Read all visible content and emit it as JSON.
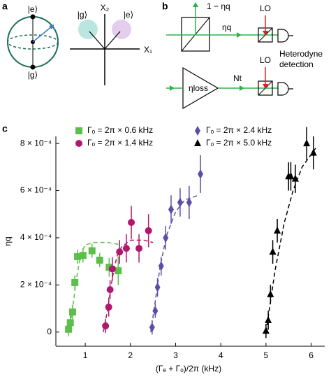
{
  "panels": {
    "a": {
      "label": "a",
      "sphere_top": "|e⟩",
      "sphere_bottom": "|g⟩",
      "x2": "X₂",
      "x1": "X₁",
      "state_g": "|g⟩",
      "state_e": "|e⟩"
    },
    "b": {
      "label": "b",
      "reflected": "1 − ηq",
      "transmitted": "ηq",
      "lo_top": "LO",
      "detection": [
        "Heterodyne",
        "detection"
      ],
      "loss": "ηloss",
      "noise": "Nt",
      "lo_bottom": "LO"
    },
    "c": {
      "label": "c"
    }
  },
  "chart_data": {
    "type": "scatter",
    "xlabel": "(Γₑ + Γₒ)/2π (kHz)",
    "ylabel": "ηq",
    "xlim": [
      0.35,
      6.3
    ],
    "xticks": [
      1,
      2,
      3,
      4,
      5,
      6
    ],
    "ylim": [
      -6e-05,
      0.00083
    ],
    "yticks": [
      {
        "value": 0,
        "label": "0"
      },
      {
        "value": 0.0002,
        "label": "2 × 10⁻⁴"
      },
      {
        "value": 0.0004,
        "label": "4 × 10⁻⁴"
      },
      {
        "value": 0.0006,
        "label": "6 × 10⁻⁴"
      },
      {
        "value": 0.0008,
        "label": "8 × 10⁻⁴"
      }
    ],
    "series": [
      {
        "name": "Γₒ = 2π × 0.6 kHz",
        "color": "#5cbf4b",
        "marker": "square",
        "x": [
          0.63,
          0.67,
          0.72,
          0.77,
          0.83,
          0.95,
          1.15,
          1.32,
          1.53,
          1.73
        ],
        "values": [
          1.2e-05,
          4e-05,
          8.5e-05,
          0.00021,
          0.00032,
          0.000325,
          0.000345,
          0.000305,
          0.000275,
          0.00026
        ],
        "errors": [
          3e-05,
          3e-05,
          3e-05,
          3e-05,
          3e-05,
          3e-05,
          3e-05,
          3e-05,
          4e-05,
          6e-05
        ],
        "fit": {
          "x": [
            0.6,
            0.7,
            0.8,
            0.9,
            1.0,
            1.2,
            1.5,
            1.8
          ],
          "y": [
            0,
            7e-05,
            0.00022,
            0.00033,
            0.00037,
            0.00038,
            0.00038,
            0.00037
          ]
        }
      },
      {
        "name": "Γₒ = 2π × 1.4 kHz",
        "color": "#b0186e",
        "marker": "circle",
        "x": [
          1.45,
          1.52,
          1.55,
          1.6,
          1.76,
          1.91,
          2.02,
          2.19,
          2.4
        ],
        "values": [
          2.6e-05,
          0.000106,
          0.00018,
          0.000268,
          0.00034,
          0.000355,
          0.000465,
          0.000355,
          0.00043
        ],
        "errors": [
          3e-05,
          4e-05,
          4e-05,
          5e-05,
          5e-05,
          6e-05,
          7e-05,
          6e-05,
          7e-05
        ],
        "fit": {
          "x": [
            1.4,
            1.5,
            1.6,
            1.7,
            1.8,
            2.0,
            2.3,
            2.5
          ],
          "y": [
            0,
            0.0001,
            0.00023,
            0.00032,
            0.00036,
            0.00039,
            0.00039,
            0.00038
          ]
        }
      },
      {
        "name": "Γₒ = 2π × 2.4 kHz",
        "color": "#5a4fa8",
        "marker": "diamond",
        "x": [
          2.48,
          2.55,
          2.6,
          2.68,
          2.78,
          2.9,
          3.1,
          3.3,
          3.55
        ],
        "values": [
          2e-05,
          9e-05,
          0.00019,
          0.00028,
          0.0004,
          0.00052,
          0.00055,
          0.00055,
          0.00067
        ],
        "errors": [
          3e-05,
          3e-05,
          4e-05,
          4e-05,
          5e-05,
          6e-05,
          6e-05,
          7e-05,
          8e-05
        ],
        "fit": {
          "x": [
            2.45,
            2.55,
            2.65,
            2.8,
            3.0,
            3.2,
            3.5
          ],
          "y": [
            0,
            0.00013,
            0.00027,
            0.00041,
            0.00051,
            0.00056,
            0.00058
          ]
        }
      },
      {
        "name": "Γₒ = 2π × 5.0 kHz",
        "color": "#000000",
        "marker": "triangle",
        "x": [
          5.0,
          5.05,
          5.1,
          5.15,
          5.25,
          5.5,
          5.55,
          5.65,
          5.9,
          6.05
        ],
        "values": [
          5e-06,
          5e-05,
          0.00016,
          0.00034,
          0.00043,
          0.00066,
          0.00066,
          0.00065,
          0.0008,
          0.00076
        ],
        "errors": [
          3e-05,
          4e-05,
          4e-05,
          5e-05,
          5e-05,
          6e-05,
          6e-05,
          6e-05,
          7e-05,
          7e-05
        ],
        "fit": {
          "x": [
            5.0,
            5.1,
            5.2,
            5.4,
            5.6,
            5.8,
            6.1
          ],
          "y": [
            0,
            0.00013,
            0.00026,
            0.00046,
            0.0006,
            0.0007,
            0.00078
          ]
        }
      }
    ]
  }
}
